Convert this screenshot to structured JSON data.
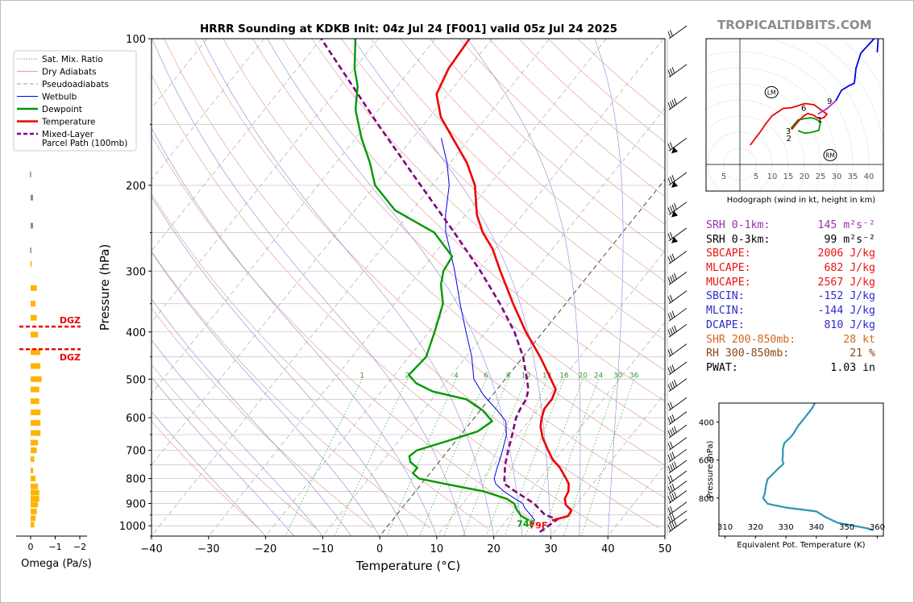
{
  "title": "HRRR Sounding at KDKB Init: 04z Jul 24 [F001] valid 05z Jul 24 2025",
  "site": "TROPICALTIDBITS.COM",
  "chart_data": [
    {
      "type": "line",
      "chart": "skew-t",
      "xlabel": "Temperature (°C)",
      "ylabel": "Pressure (hPa)",
      "xlim": [
        -40,
        50
      ],
      "ylim": [
        1050,
        100
      ],
      "y_scale": "log",
      "x_ticks": [
        -40,
        -30,
        -20,
        -10,
        0,
        10,
        20,
        30,
        40,
        50
      ],
      "y_ticks": [
        100,
        200,
        300,
        400,
        500,
        600,
        700,
        800,
        900,
        1000
      ],
      "mixing_ratio_labels": [
        "1",
        "2",
        "4",
        "6",
        "8",
        "10",
        "13",
        "16",
        "20",
        "24",
        "30",
        "36"
      ],
      "legend": {
        "position": "left",
        "items": [
          {
            "label": "Sat. Mix. Ratio",
            "color": "#2ca02c",
            "style": "dotted"
          },
          {
            "label": "Dry Adiabats",
            "color": "#e8a0a0",
            "style": "solid"
          },
          {
            "label": "Pseudoadiabats",
            "color": "#999999",
            "style": "dashed"
          },
          {
            "label": "Wetbulb",
            "color": "#0000ee",
            "style": "solid"
          },
          {
            "label": "Dewpoint",
            "color": "#009900",
            "style": "solid"
          },
          {
            "label": "Temperature",
            "color": "#ee0000",
            "style": "solid"
          },
          {
            "label": "Mixed-Layer\nParcel Path (100mb)",
            "color": "#800080",
            "style": "dashed"
          }
        ]
      },
      "surface_labels": {
        "dewpoint": "74F",
        "temperature": "79F"
      },
      "temperature": [
        [
          975,
          28.0
        ],
        [
          955,
          30.2
        ],
        [
          930,
          30.0
        ],
        [
          905,
          28.2
        ],
        [
          880,
          27.2
        ],
        [
          850,
          26.8
        ],
        [
          820,
          25.8
        ],
        [
          800,
          24.6
        ],
        [
          760,
          22.0
        ],
        [
          730,
          19.5
        ],
        [
          700,
          17.5
        ],
        [
          660,
          14.8
        ],
        [
          625,
          12.8
        ],
        [
          600,
          11.8
        ],
        [
          575,
          11.0
        ],
        [
          550,
          11.0
        ],
        [
          525,
          10.3
        ],
        [
          500,
          8.0
        ],
        [
          450,
          3.0
        ],
        [
          400,
          -3.0
        ],
        [
          350,
          -9.2
        ],
        [
          300,
          -16.0
        ],
        [
          270,
          -20.5
        ],
        [
          250,
          -24.5
        ],
        [
          230,
          -28.0
        ],
        [
          200,
          -32.5
        ],
        [
          180,
          -37.0
        ],
        [
          160,
          -43.0
        ],
        [
          145,
          -48.0
        ],
        [
          130,
          -52.0
        ],
        [
          115,
          -53.5
        ],
        [
          100,
          -54.0
        ]
      ],
      "dewpoint": [
        [
          975,
          24.0
        ],
        [
          955,
          22.0
        ],
        [
          930,
          20.5
        ],
        [
          900,
          19.0
        ],
        [
          880,
          17.0
        ],
        [
          850,
          12.0
        ],
        [
          820,
          4.0
        ],
        [
          800,
          -1.2
        ],
        [
          780,
          -3.0
        ],
        [
          760,
          -3.0
        ],
        [
          740,
          -5.0
        ],
        [
          720,
          -6.0
        ],
        [
          700,
          -5.5
        ],
        [
          670,
          -1.5
        ],
        [
          640,
          2.5
        ],
        [
          610,
          3.6
        ],
        [
          580,
          0.5
        ],
        [
          550,
          -4.0
        ],
        [
          530,
          -11.0
        ],
        [
          510,
          -15.0
        ],
        [
          490,
          -17.5
        ],
        [
          450,
          -17.0
        ],
        [
          400,
          -19.0
        ],
        [
          350,
          -21.5
        ],
        [
          320,
          -24.5
        ],
        [
          300,
          -26.0
        ],
        [
          280,
          -26.5
        ],
        [
          250,
          -33.0
        ],
        [
          225,
          -43.0
        ],
        [
          200,
          -50.0
        ],
        [
          180,
          -54.0
        ],
        [
          160,
          -59.0
        ],
        [
          140,
          -64.0
        ],
        [
          125,
          -67.0
        ],
        [
          115,
          -70.0
        ],
        [
          100,
          -74.0
        ]
      ],
      "wetbulb": [
        [
          975,
          25.0
        ],
        [
          950,
          23.5
        ],
        [
          920,
          21.5
        ],
        [
          900,
          20.5
        ],
        [
          875,
          18.0
        ],
        [
          850,
          15.5
        ],
        [
          820,
          13.0
        ],
        [
          800,
          12.0
        ],
        [
          760,
          11.0
        ],
        [
          730,
          10.3
        ],
        [
          700,
          9.5
        ],
        [
          650,
          8.0
        ],
        [
          610,
          6.0
        ],
        [
          575,
          2.5
        ],
        [
          540,
          -1.5
        ],
        [
          500,
          -5.5
        ],
        [
          450,
          -9.0
        ],
        [
          400,
          -13.5
        ],
        [
          350,
          -18.5
        ],
        [
          300,
          -24.0
        ],
        [
          270,
          -28.0
        ],
        [
          250,
          -31.0
        ],
        [
          230,
          -33.5
        ],
        [
          200,
          -37.0
        ],
        [
          180,
          -40.5
        ],
        [
          160,
          -45.0
        ]
      ],
      "parcel_ml": [
        [
          1030,
          27.5
        ],
        [
          970,
          28.8
        ],
        [
          950,
          26.0
        ],
        [
          900,
          22.5
        ],
        [
          850,
          17.5
        ],
        [
          820,
          14.5
        ],
        [
          800,
          13.8
        ],
        [
          750,
          12.0
        ],
        [
          700,
          10.5
        ],
        [
          650,
          9.0
        ],
        [
          600,
          7.3
        ],
        [
          575,
          6.8
        ],
        [
          550,
          6.5
        ],
        [
          525,
          5.5
        ],
        [
          500,
          3.8
        ],
        [
          450,
          0.0
        ],
        [
          400,
          -5.0
        ],
        [
          350,
          -11.5
        ],
        [
          300,
          -19.5
        ],
        [
          250,
          -29.5
        ],
        [
          200,
          -42.0
        ],
        [
          150,
          -58.0
        ],
        [
          100,
          -80.0
        ]
      ],
      "wind_levels_hpa": [
        100,
        120,
        140,
        170,
        200,
        230,
        260,
        290,
        320,
        350,
        380,
        410,
        450,
        490,
        530,
        580,
        620,
        660,
        700,
        740,
        780,
        820,
        860,
        900,
        950,
        990,
        1030
      ],
      "dgz": {
        "label": "DGZ",
        "top_hpa": 390,
        "bottom_hpa": 434
      }
    },
    {
      "type": "bar",
      "chart": "omega-profile",
      "xlabel": "Omega (Pa/s)",
      "x_ticks": [
        "0",
        "−1",
        "−2"
      ],
      "xlim": [
        0.3,
        -2.5
      ],
      "bars": [
        [
          110,
          -0.15,
          "gray"
        ],
        [
          190,
          0.03,
          "gray"
        ],
        [
          212,
          -0.1,
          "gray"
        ],
        [
          242,
          -0.1,
          "gray"
        ],
        [
          272,
          0.02,
          "gray"
        ],
        [
          290,
          -0.05,
          "orange"
        ],
        [
          325,
          -0.25,
          "orange"
        ],
        [
          350,
          -0.2,
          "orange"
        ],
        [
          374,
          -0.25,
          "orange"
        ],
        [
          405,
          -0.3,
          "orange"
        ],
        [
          440,
          -0.4,
          "orange"
        ],
        [
          470,
          -0.4,
          "orange"
        ],
        [
          500,
          -0.45,
          "orange"
        ],
        [
          525,
          -0.35,
          "orange"
        ],
        [
          555,
          -0.35,
          "orange"
        ],
        [
          585,
          -0.4,
          "orange"
        ],
        [
          615,
          -0.4,
          "orange"
        ],
        [
          645,
          -0.4,
          "orange"
        ],
        [
          675,
          -0.3,
          "orange"
        ],
        [
          700,
          -0.25,
          "orange"
        ],
        [
          730,
          -0.15,
          "orange"
        ],
        [
          770,
          -0.1,
          "orange"
        ],
        [
          800,
          -0.2,
          "orange"
        ],
        [
          830,
          -0.3,
          "orange"
        ],
        [
          855,
          -0.35,
          "orange"
        ],
        [
          880,
          -0.35,
          "orange"
        ],
        [
          905,
          -0.3,
          "orange"
        ],
        [
          935,
          -0.25,
          "orange"
        ],
        [
          965,
          -0.2,
          "orange"
        ],
        [
          995,
          -0.15,
          "orange"
        ]
      ]
    },
    {
      "type": "line",
      "chart": "hodograph",
      "xlabel": "Hodograph (wind in kt, height in km)",
      "x_tick_labels": [
        "5",
        "5",
        "10",
        "15",
        "20",
        "25",
        "30",
        "35",
        "40"
      ],
      "x_tick_values": [
        -5,
        5,
        10,
        15,
        20,
        25,
        30,
        35,
        40
      ],
      "ring_step_kt": 5,
      "height_labels": [
        {
          "text": "1",
          "u": 24.8,
          "v": 14.0
        },
        {
          "text": "2",
          "u": 15.2,
          "v": 8.2
        },
        {
          "text": "3",
          "u": 15.0,
          "v": 10.5
        },
        {
          "text": "6",
          "u": 19.8,
          "v": 17.6
        },
        {
          "text": "9",
          "u": 27.8,
          "v": 19.8
        }
      ],
      "markers": [
        {
          "text": "LM",
          "u": 9.8,
          "v": 22.4
        },
        {
          "text": "RM",
          "u": 28.0,
          "v": 2.9
        }
      ],
      "segments": [
        {
          "color": "#009900",
          "points": [
            [
              18,
              10.5
            ],
            [
              20,
              9.7
            ],
            [
              22,
              9.9
            ],
            [
              24.5,
              10.6
            ],
            [
              25,
              13.3
            ],
            [
              23.2,
              14.2
            ],
            [
              22,
              14.5
            ],
            [
              20,
              14.2
            ],
            [
              18,
              13.8
            ],
            [
              16,
              11.4
            ],
            [
              16.1,
              10.9
            ]
          ]
        },
        {
          "color": "#ee0000",
          "points": [
            [
              16.1,
              10.9
            ],
            [
              18.5,
              13.8
            ],
            [
              20,
              15.2
            ],
            [
              21,
              15.8
            ],
            [
              22.8,
              15.3
            ],
            [
              24,
              14.5
            ],
            [
              25,
              14.2
            ],
            [
              26,
              14.5
            ],
            [
              27,
              15.6
            ],
            [
              23,
              18.5
            ],
            [
              20.2,
              18.9
            ],
            [
              16,
              17.6
            ],
            [
              13.5,
              17.4
            ],
            [
              10.1,
              15.2
            ],
            [
              8,
              12.6
            ],
            [
              6.6,
              10.5
            ],
            [
              3.2,
              6.0
            ]
          ]
        },
        {
          "color": "#aa33cc",
          "points": [
            [
              24.2,
              15.6
            ],
            [
              27,
              17.3
            ],
            [
              29.8,
              19.8
            ]
          ]
        },
        {
          "color": "#0000ee",
          "points": [
            [
              29.8,
              19.8
            ],
            [
              31.5,
              23
            ],
            [
              34,
              24.5
            ],
            [
              35.5,
              25.2
            ],
            [
              36,
              29.8
            ],
            [
              37.5,
              34.5
            ],
            [
              43,
              40.5
            ],
            [
              42.6,
              34.8
            ]
          ]
        }
      ]
    },
    {
      "type": "line",
      "chart": "theta-e-profile",
      "xlabel": "Equivalent Pot. Temperature (K)",
      "ylabel": "Pressure (hPa)",
      "xlim": [
        308,
        362
      ],
      "x_ticks": [
        310,
        320,
        330,
        340,
        350,
        360
      ],
      "ylim": [
        1000,
        300
      ],
      "y_ticks": [
        400,
        600,
        800
      ],
      "color": "#2f95b3",
      "series": [
        [
          300,
          339.5
        ],
        [
          330,
          338.5
        ],
        [
          380,
          336.0
        ],
        [
          420,
          334.0
        ],
        [
          460,
          332.5
        ],
        [
          480,
          331.5
        ],
        [
          510,
          329.5
        ],
        [
          540,
          329.0
        ],
        [
          580,
          329.0
        ],
        [
          600,
          328.8
        ],
        [
          620,
          329.2
        ],
        [
          640,
          327.8
        ],
        [
          700,
          324.0
        ],
        [
          730,
          323.5
        ],
        [
          780,
          323.0
        ],
        [
          800,
          322.5
        ],
        [
          830,
          324.0
        ],
        [
          850,
          330.0
        ],
        [
          870,
          340.0
        ],
        [
          900,
          343.0
        ],
        [
          930,
          347.0
        ],
        [
          960,
          357.0
        ],
        [
          968,
          358.5
        ],
        [
          962,
          357.0
        ]
      ]
    }
  ],
  "params": [
    {
      "label": "SRH 0-1km:",
      "value": "145 m²s⁻²",
      "color": "#9a30b0"
    },
    {
      "label": "SRH 0-3km:",
      "value": "99 m²s⁻²",
      "color": "#000000"
    },
    {
      "label": "SBCAPE:",
      "value": "2006 J/kg",
      "color": "#ee1111"
    },
    {
      "label": "MLCAPE:",
      "value": "682 J/kg",
      "color": "#ee1111"
    },
    {
      "label": "MUCAPE:",
      "value": "2567 J/kg",
      "color": "#ee1111"
    },
    {
      "label": "SBCIN:",
      "value": "-152 J/kg",
      "color": "#2a2ad0"
    },
    {
      "label": "MLCIN:",
      "value": "-144 J/kg",
      "color": "#2a2ad0"
    },
    {
      "label": "DCAPE:",
      "value": "810 J/kg",
      "color": "#2a2ad0"
    },
    {
      "label": "SHR 200-850mb:",
      "value": "28 kt",
      "color": "#d2691e"
    },
    {
      "label": "RH 300-850mb:",
      "value": "21 %",
      "color": "#8b4513"
    },
    {
      "label": "PWAT:",
      "value": "1.03 in",
      "color": "#000000"
    }
  ]
}
